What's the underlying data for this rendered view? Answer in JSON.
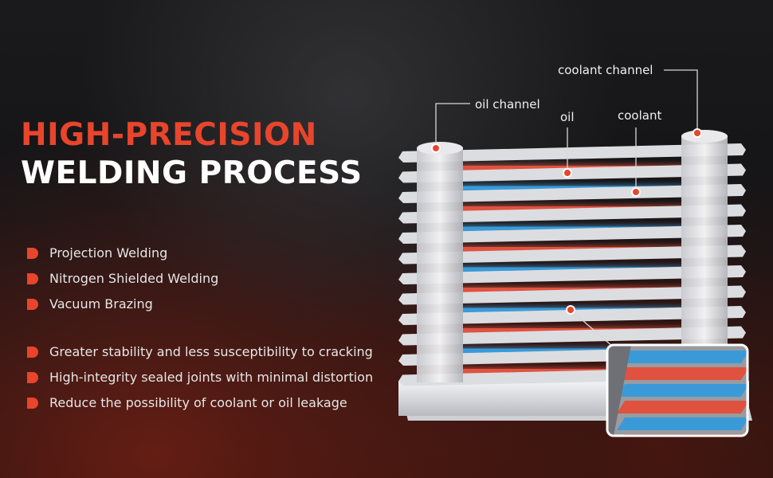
{
  "headline": {
    "line1": "HIGH-PRECISION",
    "line2": "WELDING PROCESS"
  },
  "welding_methods": [
    "Projection Welding",
    "Nitrogen Shielded Welding",
    "Vacuum Brazing"
  ],
  "benefits": [
    "Greater stability and less susceptibility to cracking",
    "High-integrity sealed joints with minimal distortion",
    "Reduce the possibility of coolant or oil leakage"
  ],
  "diagram_labels": {
    "coolant_channel": "coolant channel",
    "oil_channel": "oil channel",
    "oil": "oil",
    "coolant": "coolant"
  },
  "colors": {
    "accent": "#e8452c",
    "oil": "#e0523f",
    "coolant": "#3a9ad8",
    "metal": "#d9dadd"
  },
  "bullet_icon": "half-round-bullet"
}
